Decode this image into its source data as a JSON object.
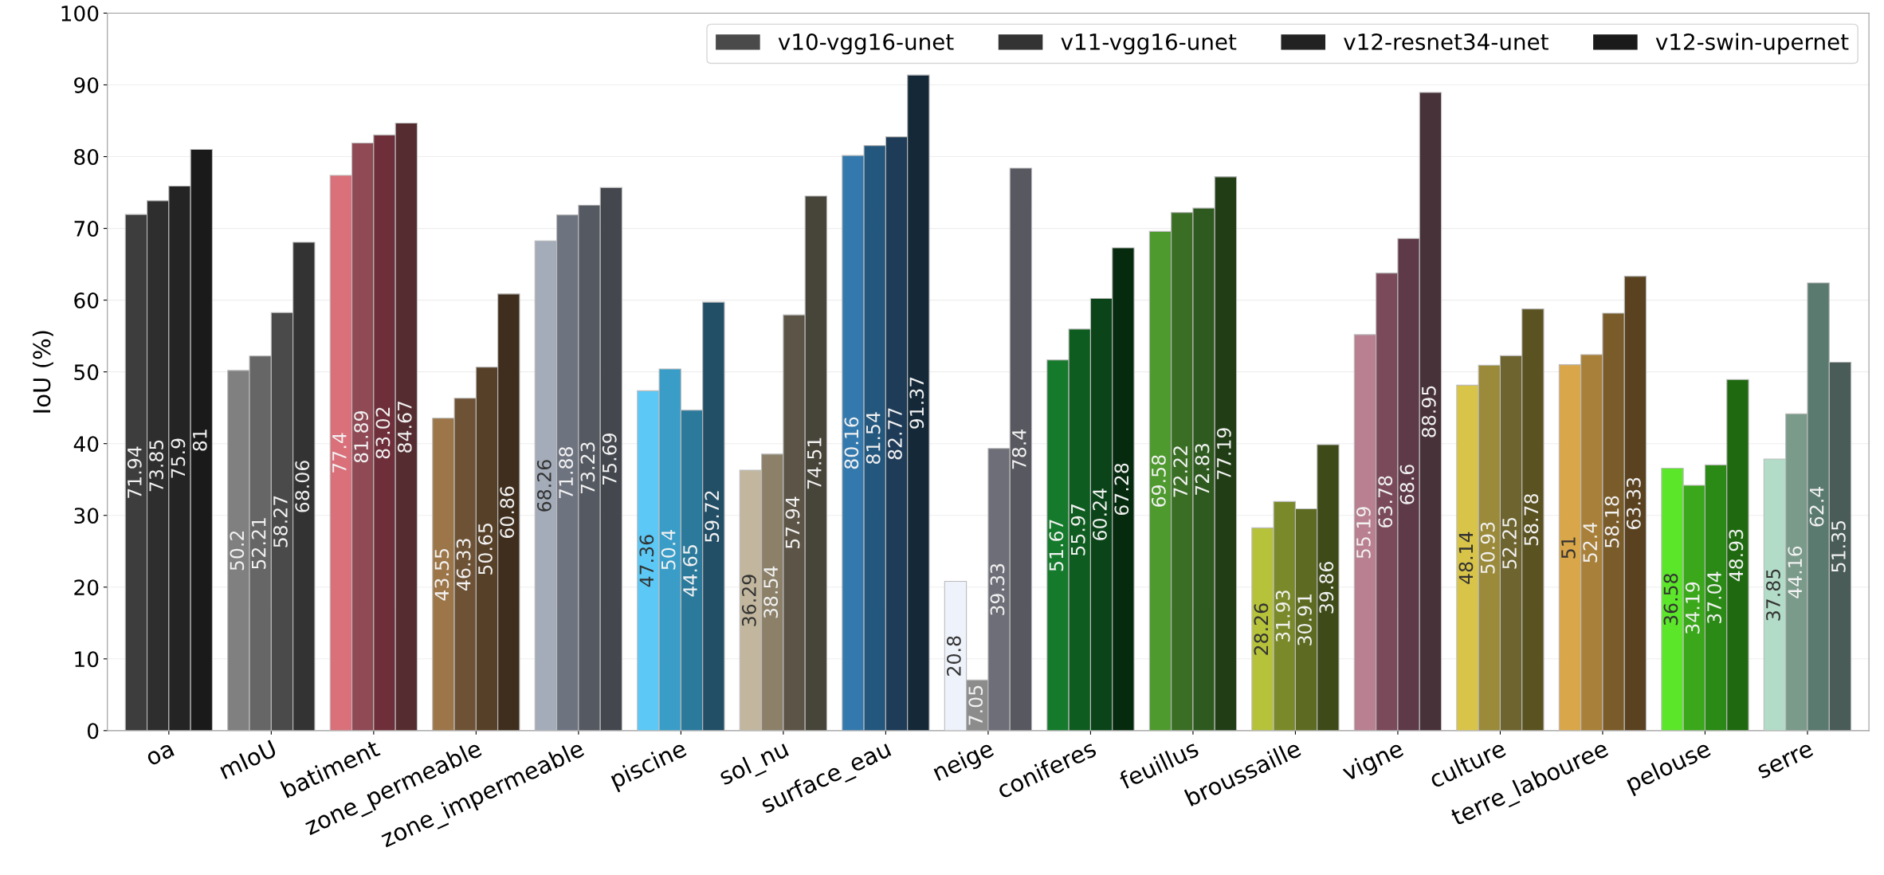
{
  "chart_data": {
    "type": "bar",
    "ylabel": "IoU (%)",
    "categories": [
      "oa",
      "mIoU",
      "batiment",
      "zone_permeable",
      "zone_impermeable",
      "piscine",
      "sol_nu",
      "surface_eau",
      "neige",
      "coniferes",
      "feuillus",
      "broussaille",
      "vigne",
      "culture",
      "terre_labouree",
      "pelouse",
      "serre"
    ],
    "series": [
      {
        "name": "v10-vgg16-unet",
        "color": "#4a4a4a",
        "values": [
          71.94,
          50.2,
          77.4,
          43.55,
          68.26,
          47.36,
          36.29,
          80.16,
          20.8,
          51.67,
          69.58,
          28.26,
          55.19,
          48.14,
          51,
          36.58,
          37.85
        ],
        "colors": [
          "#3d3d3d",
          "#808080",
          "#d9707a",
          "#9c7548",
          "#a3acb8",
          "#5bc8f5",
          "#c2b79e",
          "#3479ad",
          "#eef2fb",
          "#157a2c",
          "#4e9a2e",
          "#b5c23a",
          "#b88090",
          "#d9c44a",
          "#d9a64a",
          "#5ce62a",
          "#b3dcc8"
        ]
      },
      {
        "name": "v11-vgg16-unet",
        "color": "#333333",
        "values": [
          73.85,
          52.21,
          81.89,
          46.33,
          71.88,
          50.4,
          38.54,
          81.54,
          7.05,
          55.97,
          72.22,
          31.93,
          63.78,
          50.93,
          52.4,
          34.19,
          44.16
        ],
        "colors": [
          "#2e2e2e",
          "#666666",
          "#8f4a55",
          "#6e5235",
          "#6e7380",
          "#3a9dc8",
          "#8c8069",
          "#24577d",
          "#8c8c8c",
          "#0f5c20",
          "#3a6e25",
          "#7a8a2a",
          "#7a4a5a",
          "#9a8a3a",
          "#a8803a",
          "#3aa81a",
          "#7a9a8a"
        ]
      },
      {
        "name": "v12-resnet34-unet",
        "color": "#222222",
        "values": [
          75.9,
          58.27,
          83.02,
          50.65,
          73.23,
          44.65,
          57.94,
          82.77,
          39.33,
          60.24,
          72.83,
          30.91,
          68.6,
          52.25,
          58.18,
          37.04,
          62.4
        ],
        "colors": [
          "#242424",
          "#4a4a4a",
          "#6e2f3a",
          "#574028",
          "#555962",
          "#2b7a9c",
          "#5c5446",
          "#1e3b57",
          "#6e6e78",
          "#0a4418",
          "#2e5a20",
          "#5c6a22",
          "#5e3a48",
          "#6e6430",
          "#7a5c2a",
          "#2a8a15",
          "#5a7a70"
        ]
      },
      {
        "name": "v12-swin-upernet",
        "color": "#1a1a1a",
        "values": [
          81,
          68.06,
          84.67,
          60.86,
          75.69,
          59.72,
          74.51,
          91.37,
          78.4,
          67.28,
          77.19,
          39.86,
          88.95,
          58.78,
          63.33,
          48.93,
          51.35
        ],
        "colors": [
          "#1a1a1a",
          "#333333",
          "#552c30",
          "#3f2e1e",
          "#45474f",
          "#234f66",
          "#47443a",
          "#142838",
          "#585860",
          "#062a0e",
          "#213d15",
          "#3e4a18",
          "#48323a",
          "#5a5220",
          "#5a4220",
          "#1f6a10",
          "#4a5c58"
        ]
      }
    ],
    "ylim": [
      0,
      100
    ],
    "yticks": [
      0,
      10,
      20,
      30,
      40,
      50,
      60,
      70,
      80,
      90,
      100
    ],
    "grid": "y",
    "legend": "top right",
    "data_labels": true
  }
}
